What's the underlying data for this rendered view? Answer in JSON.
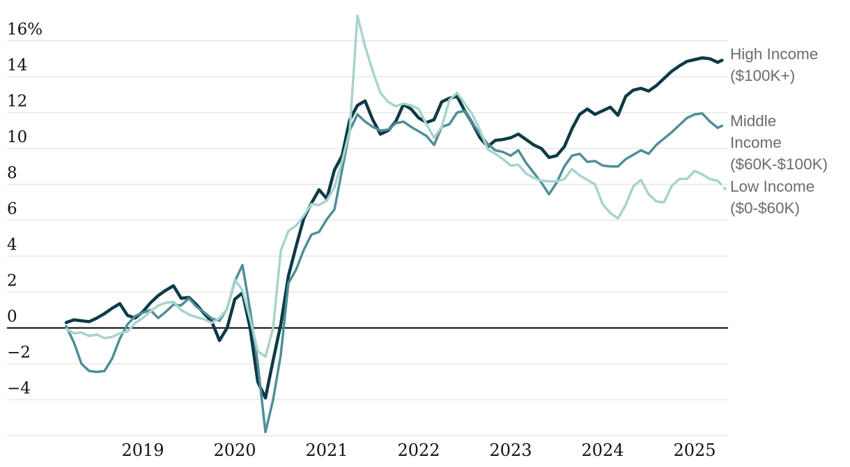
{
  "chart_data": {
    "type": "line",
    "title": "",
    "subtitle": "",
    "frequency": "monthly",
    "x_range_start": "2018-03",
    "x_range_end": "2025-05",
    "grid": "horizontal-only",
    "legend_position": "right-of-line-ends",
    "background_color": "#ffffff",
    "gridline_color": "#e7e7e7",
    "zero_line_color": "#000000",
    "tick_text_color": "#111111",
    "legend_text_color": "#6b6b6b",
    "ylim": [
      -7,
      17.5
    ],
    "y_unit": "%",
    "y_ticks": [
      {
        "label": "16%",
        "value": 16
      },
      {
        "label": "14",
        "value": 14
      },
      {
        "label": "12",
        "value": 12
      },
      {
        "label": "10",
        "value": 10
      },
      {
        "label": "8",
        "value": 8
      },
      {
        "label": "6",
        "value": 6
      },
      {
        "label": "4",
        "value": 4
      },
      {
        "label": "2",
        "value": 2
      },
      {
        "label": "0",
        "value": 0
      },
      {
        "label": "−2",
        "value": -2
      },
      {
        "label": "−4",
        "value": -4
      }
    ],
    "y_gridlines": [
      16,
      14,
      12,
      10,
      8,
      6,
      4,
      2,
      0,
      -2,
      -4,
      -6
    ],
    "x_ticks": [
      {
        "label": "2019",
        "year": 2019
      },
      {
        "label": "2020",
        "year": 2020
      },
      {
        "label": "2021",
        "year": 2021
      },
      {
        "label": "2022",
        "year": 2022
      },
      {
        "label": "2023",
        "year": 2023
      },
      {
        "label": "2024",
        "year": 2024
      },
      {
        "label": "2025",
        "year": 2025
      }
    ],
    "last_point_style": "dashed",
    "series": [
      {
        "name": "High Income ($100K+)",
        "legend_lines": [
          "High Income",
          "($100K+)"
        ],
        "color": "#0d3a46",
        "stroke_width": 4.5,
        "monthly_from": "2018-03",
        "values": [
          0.3,
          0.45,
          0.4,
          0.35,
          0.55,
          0.8,
          1.1,
          1.35,
          0.7,
          0.55,
          0.9,
          1.4,
          1.8,
          2.1,
          2.35,
          1.65,
          1.7,
          1.3,
          0.8,
          0.35,
          -0.7,
          0.0,
          1.6,
          1.95,
          0.0,
          -3.0,
          -3.9,
          -1.8,
          0.2,
          2.9,
          4.55,
          6.1,
          6.95,
          7.7,
          7.2,
          8.8,
          9.6,
          11.6,
          12.4,
          12.65,
          11.6,
          10.8,
          11.0,
          11.5,
          12.45,
          12.2,
          11.7,
          11.45,
          11.6,
          12.6,
          12.8,
          12.9,
          12.1,
          11.4,
          10.6,
          10.1,
          10.45,
          10.5,
          10.6,
          10.8,
          10.5,
          10.2,
          10.0,
          9.5,
          9.6,
          10.1,
          11.1,
          11.9,
          12.2,
          11.9,
          12.1,
          12.3,
          11.85,
          12.9,
          13.25,
          13.35,
          13.2,
          13.5,
          13.9,
          14.3,
          14.6,
          14.85,
          14.95,
          15.05,
          15.0,
          14.8,
          15.0
        ]
      },
      {
        "name": "Middle Income ($60K-$100K)",
        "legend_lines": [
          "Middle",
          "Income",
          "($60K-$100K)"
        ],
        "color": "#4f8e98",
        "stroke_width": 3.5,
        "monthly_from": "2018-03",
        "values": [
          0.1,
          -0.8,
          -2.0,
          -2.4,
          -2.45,
          -2.4,
          -1.7,
          -0.6,
          0.2,
          0.66,
          0.85,
          1.0,
          0.55,
          0.9,
          1.3,
          1.26,
          1.65,
          1.18,
          0.87,
          0.52,
          0.4,
          1.07,
          2.6,
          3.5,
          1.0,
          -2.0,
          -5.8,
          -4.0,
          -1.5,
          2.5,
          3.25,
          4.35,
          5.2,
          5.35,
          6.05,
          6.6,
          8.8,
          11.0,
          11.9,
          11.5,
          11.2,
          11.0,
          11.05,
          11.4,
          11.5,
          11.2,
          10.95,
          10.7,
          10.2,
          11.2,
          11.35,
          12.0,
          12.1,
          11.4,
          10.8,
          10.25,
          9.9,
          9.8,
          9.6,
          9.9,
          9.2,
          8.65,
          8.1,
          7.45,
          8.1,
          9.0,
          9.6,
          9.7,
          9.25,
          9.3,
          9.05,
          9.0,
          9.0,
          9.4,
          9.65,
          9.9,
          9.7,
          10.2,
          10.55,
          10.9,
          11.3,
          11.7,
          11.9,
          11.95,
          11.5,
          11.15,
          11.35
        ]
      },
      {
        "name": "Low Income ($0-$60K)",
        "legend_lines": [
          "Low Income",
          "($0-$60K)"
        ],
        "color": "#a8d3cd",
        "stroke_width": 3.5,
        "monthly_from": "2018-03",
        "values": [
          -0.05,
          -0.3,
          -0.25,
          -0.45,
          -0.37,
          -0.57,
          -0.5,
          -0.3,
          -0.2,
          0.28,
          0.55,
          0.93,
          1.25,
          1.4,
          1.45,
          1.0,
          0.75,
          0.6,
          0.48,
          0.28,
          0.55,
          1.05,
          2.7,
          2.1,
          0.5,
          -1.3,
          -1.6,
          0.0,
          4.3,
          5.4,
          5.7,
          6.25,
          6.9,
          6.85,
          7.1,
          7.85,
          9.3,
          11.0,
          17.4,
          15.7,
          14.3,
          13.1,
          12.6,
          12.35,
          12.5,
          12.4,
          12.2,
          11.35,
          10.6,
          11.2,
          12.7,
          13.1,
          12.5,
          11.9,
          11.0,
          9.95,
          9.7,
          9.4,
          9.05,
          9.1,
          8.6,
          8.37,
          8.2,
          8.17,
          8.17,
          8.3,
          8.85,
          8.5,
          8.25,
          8.0,
          6.9,
          6.4,
          6.1,
          6.85,
          7.9,
          8.25,
          7.45,
          7.05,
          7.0,
          7.9,
          8.3,
          8.3,
          8.75,
          8.55,
          8.3,
          8.2,
          7.75
        ]
      }
    ]
  }
}
